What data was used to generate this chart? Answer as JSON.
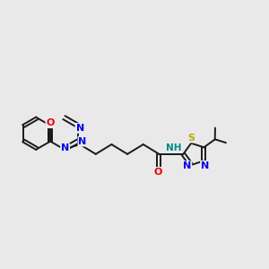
{
  "bg_color": "#e9e9e9",
  "bond_color": "#1a1a1a",
  "N_color": "#0000ee",
  "O_color": "#ee0000",
  "S_color": "#bbaa00",
  "H_color": "#008888",
  "bond_width": 1.4,
  "font_size_atom": 7.5,
  "fig_w": 3.0,
  "fig_h": 3.0,
  "dpi": 100,
  "xlim": [
    0,
    12
  ],
  "ylim": [
    0,
    10
  ]
}
